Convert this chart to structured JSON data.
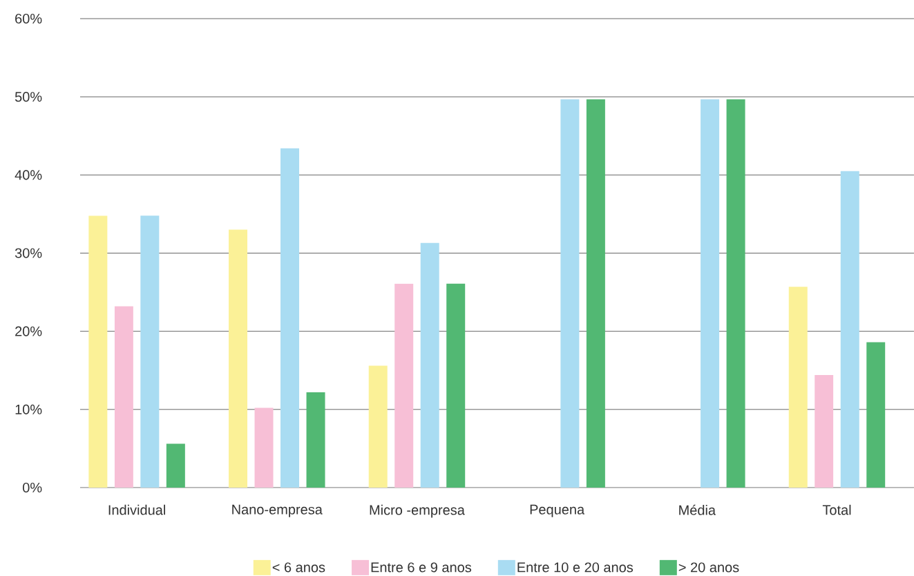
{
  "chart_data": {
    "type": "bar",
    "categories": [
      "Individual",
      "Nano-empresa",
      "Micro -empresa",
      "Pequena",
      "Média",
      "Total"
    ],
    "series": [
      {
        "name": "< 6 anos",
        "color": "#fbf197",
        "values": [
          34.8,
          33.0,
          15.6,
          null,
          null,
          25.7
        ]
      },
      {
        "name": "Entre 6 e 9 anos",
        "color": "#f7bfd6",
        "values": [
          23.2,
          10.2,
          26.1,
          null,
          null,
          14.4
        ]
      },
      {
        "name": "Entre 10 e 20 anos",
        "color": "#a9dcf2",
        "values": [
          34.8,
          43.4,
          31.3,
          49.7,
          49.7,
          40.5
        ]
      },
      {
        "name": "> 20 anos",
        "color": "#52b873",
        "values": [
          5.6,
          12.2,
          26.1,
          49.7,
          49.7,
          18.6
        ]
      }
    ],
    "ylim": [
      0,
      60
    ],
    "yticks": [
      {
        "value": 0,
        "label": "0%"
      },
      {
        "value": 10,
        "label": "10%"
      },
      {
        "value": 20,
        "label": "20%"
      },
      {
        "value": 30,
        "label": "30%"
      },
      {
        "value": 40,
        "label": "40%"
      },
      {
        "value": 50,
        "label": "50%"
      },
      {
        "value": 60,
        "label": "60%"
      }
    ],
    "grid": "y",
    "legend": "bottom"
  }
}
